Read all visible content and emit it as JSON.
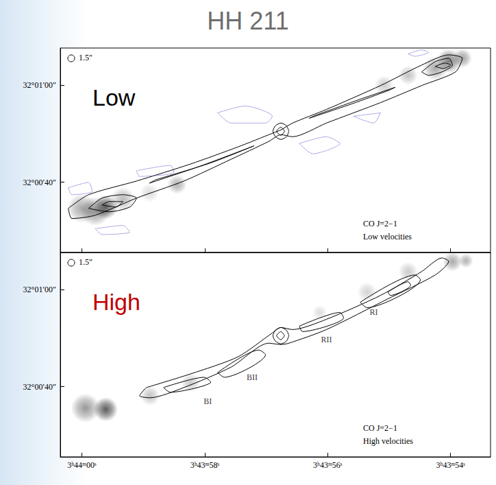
{
  "title": "HH 211",
  "chart_data": [
    {
      "type": "contour_map",
      "label": "Low",
      "label_color": "#000000",
      "beam": "1.5″",
      "annotation": [
        "CO J=2−1",
        "Low velocities"
      ],
      "xlim": [
        60.35,
        53.35
      ],
      "ylim": [
        25.5,
        67.7
      ],
      "xticks": [
        {
          "value": 60,
          "label": "3ʰ44ᵐ00ˢ"
        },
        {
          "value": 58,
          "label": "3ʰ43ᵐ58ˢ"
        },
        {
          "value": 56,
          "label": "3ʰ43ᵐ56ˢ"
        },
        {
          "value": 54,
          "label": "3ʰ43ᵐ54ˢ"
        }
      ],
      "yticks": [
        {
          "value": 40,
          "label": "32°00′40″"
        },
        {
          "value": 60,
          "label": "32°01′00″"
        }
      ],
      "tick_labels": "y",
      "emission_color": "#282828",
      "emission": [
        [
          59.61,
          34.88,
          2.5,
          0.9
        ],
        [
          59.78,
          34.0,
          3,
          0.6
        ],
        [
          60.0,
          34.6,
          3,
          0.5
        ],
        [
          59.33,
          36.5,
          2.5,
          0.4
        ],
        [
          58.45,
          39.53,
          2,
          0.45
        ],
        [
          58.9,
          37.8,
          2,
          0.2
        ],
        [
          54.03,
          65.0,
          2.5,
          0.75
        ],
        [
          53.81,
          65.6,
          2,
          0.55
        ],
        [
          54.25,
          63.5,
          2.5,
          0.5
        ],
        [
          54.69,
          62.07,
          2,
          0.35
        ],
        [
          55.08,
          60.0,
          2,
          0.3
        ]
      ],
      "series": [
        {
          "color": "#000000",
          "line_style": "solid",
          "contours": [
            [
              [
                60.22,
                34.6
              ],
              [
                59.89,
                37.42
              ],
              [
                59.11,
                40.24
              ],
              [
                58.23,
                43.76
              ],
              [
                57.46,
                47.28
              ],
              [
                56.9,
                50.09
              ],
              [
                56.76,
                50.8
              ],
              [
                56.57,
                52.21
              ],
              [
                56.02,
                55.02
              ],
              [
                55.14,
                59.95
              ],
              [
                54.47,
                64.18
              ],
              [
                54.03,
                66.29
              ],
              [
                53.81,
                65.59
              ],
              [
                53.92,
                62.77
              ],
              [
                54.47,
                59.95
              ],
              [
                55.14,
                56.43
              ],
              [
                56.02,
                52.21
              ],
              [
                56.57,
                49.39
              ],
              [
                56.76,
                49.81
              ],
              [
                56.96,
                48.4
              ],
              [
                57.57,
                44.74
              ],
              [
                58.34,
                40.24
              ],
              [
                59.11,
                36.72
              ],
              [
                59.78,
                33.19
              ],
              [
                60.16,
                32.49
              ]
            ],
            [
              [
                59.89,
                34.6
              ],
              [
                59.67,
                36.72
              ],
              [
                59.33,
                37.42
              ],
              [
                59.11,
                36.72
              ],
              [
                59.22,
                34.88
              ],
              [
                59.55,
                33.9
              ]
            ],
            [
              [
                59.67,
                35.31
              ],
              [
                59.55,
                36.01
              ],
              [
                59.33,
                36.01
              ],
              [
                59.44,
                34.88
              ]
            ],
            [
              [
                58.8,
                40.5
              ],
              [
                57.9,
                44.0
              ],
              [
                57.2,
                47.5
              ],
              [
                57.3,
                47.0
              ],
              [
                58.1,
                43.2
              ],
              [
                58.9,
                39.8
              ]
            ],
            [
              [
                56.2,
                53.8
              ],
              [
                55.5,
                57.0
              ],
              [
                54.9,
                59.6
              ],
              [
                55.0,
                59.0
              ],
              [
                55.6,
                56.2
              ],
              [
                56.3,
                53.2
              ]
            ],
            [
              [
                54.47,
                62.77
              ],
              [
                54.25,
                64.88
              ],
              [
                54.03,
                65.59
              ],
              [
                53.97,
                64.18
              ],
              [
                54.14,
                62.77
              ],
              [
                54.36,
                62.07
              ]
            ],
            [
              [
                54.25,
                63.9
              ],
              [
                54.09,
                64.6
              ],
              [
                54.0,
                64.2
              ],
              [
                54.12,
                63.47
              ]
            ],
            [
              [
                56.63,
                50.52
              ],
              [
                56.67,
                51.64
              ],
              [
                56.76,
                52.21
              ],
              [
                56.85,
                51.64
              ],
              [
                56.89,
                50.52
              ],
              [
                56.85,
                49.39
              ],
              [
                56.76,
                48.83
              ],
              [
                56.67,
                49.39
              ]
            ],
            [
              [
                56.7,
                50.52
              ],
              [
                56.76,
                51.37
              ],
              [
                56.83,
                50.52
              ],
              [
                56.76,
                49.68
              ]
            ]
          ]
        },
        {
          "color": "#5a5ad2",
          "line_style": "dotted",
          "contours": [
            [
              [
                57.79,
                54.32
              ],
              [
                57.34,
                55.73
              ],
              [
                56.9,
                53.62
              ],
              [
                57.01,
                52.21
              ],
              [
                57.57,
                52.21
              ]
            ],
            [
              [
                59.11,
                42.35
              ],
              [
                58.56,
                43.47
              ],
              [
                58.5,
                42.0
              ],
              [
                59.06,
                41.2
              ]
            ],
            [
              [
                60.22,
                38.83
              ],
              [
                59.89,
                39.95
              ],
              [
                59.83,
                38.12
              ],
              [
                60.16,
                37.42
              ]
            ],
            [
              [
                56.46,
                47.98
              ],
              [
                56.02,
                49.39
              ],
              [
                55.8,
                47.98
              ],
              [
                56.24,
                45.87
              ]
            ],
            [
              [
                55.58,
                53.62
              ],
              [
                55.14,
                54.32
              ],
              [
                55.25,
                52.21
              ]
            ],
            [
              [
                59.78,
                30.4
              ],
              [
                59.33,
                31.08
              ],
              [
                59.22,
                29.7
              ],
              [
                59.67,
                29.2
              ]
            ],
            [
              [
                54.69,
                66.5
              ],
              [
                54.47,
                67.3
              ],
              [
                54.36,
                66.8
              ],
              [
                54.58,
                66.0
              ]
            ]
          ]
        }
      ],
      "labels": []
    },
    {
      "type": "contour_map",
      "label": "High",
      "label_color": "#c00000",
      "beam": "1.5″",
      "annotation": [
        "CO J=2−1",
        "High velocities"
      ],
      "xlim": [
        60.35,
        53.35
      ],
      "ylim": [
        25.5,
        67.7
      ],
      "xticks": [
        {
          "value": 60,
          "label": "3ʰ44ᵐ00ˢ"
        },
        {
          "value": 58,
          "label": "3ʰ43ᵐ58ˢ"
        },
        {
          "value": 56,
          "label": "3ʰ43ᵐ56ˢ"
        },
        {
          "value": 54,
          "label": "3ʰ43ᵐ54ˢ"
        }
      ],
      "yticks": [
        {
          "value": 40,
          "label": "32°00′40″"
        },
        {
          "value": 60,
          "label": "32°01′00″"
        }
      ],
      "emission_color": "#282828",
      "emission": [
        [
          59.61,
          35.31,
          2.5,
          0.95
        ],
        [
          59.94,
          35.59,
          3,
          0.6
        ],
        [
          58.89,
          38.12,
          2,
          0.35
        ],
        [
          58.23,
          40.8,
          2,
          0.3
        ],
        [
          53.97,
          65.8,
          2,
          0.5
        ],
        [
          53.75,
          66.0,
          1.5,
          0.45
        ],
        [
          54.69,
          63.76,
          2,
          0.3
        ],
        [
          55.36,
          59.53,
          2,
          0.25
        ],
        [
          56.13,
          55.31,
          1.5,
          0.2
        ]
      ],
      "series": [
        {
          "color": "#000000",
          "line_style": "solid",
          "contours": [
            [
              [
                58.95,
                39.81
              ],
              [
                58.23,
                42.63
              ],
              [
                57.46,
                46.15
              ],
              [
                56.9,
                51.08
              ],
              [
                56.76,
                52.21
              ],
              [
                56.57,
                51.78
              ],
              [
                56.02,
                53.9
              ],
              [
                55.14,
                58.83
              ],
              [
                54.47,
                63.76
              ],
              [
                54.14,
                66.57
              ],
              [
                54.03,
                65.87
              ],
              [
                54.25,
                63.05
              ],
              [
                55.02,
                58.12
              ],
              [
                56.02,
                51.78
              ],
              [
                56.63,
                48.97
              ],
              [
                56.76,
                48.69
              ],
              [
                56.96,
                48.97
              ],
              [
                57.57,
                44.04
              ],
              [
                58.34,
                39.81
              ],
              [
                58.89,
                37.7
              ],
              [
                59.06,
                38.12
              ]
            ],
            [
              [
                58.67,
                39.81
              ],
              [
                58.01,
                41.93
              ],
              [
                57.9,
                40.94
              ],
              [
                58.56,
                38.83
              ]
            ],
            [
              [
                57.79,
                42.91
              ],
              [
                57.12,
                47.56
              ],
              [
                57.01,
                46.57
              ],
              [
                57.68,
                41.93
              ]
            ],
            [
              [
                56.46,
                52.49
              ],
              [
                55.8,
                55.31
              ],
              [
                55.74,
                54.18
              ],
              [
                56.41,
                51.36
              ]
            ],
            [
              [
                55.47,
                57.42
              ],
              [
                54.58,
                63.05
              ],
              [
                54.49,
                62.07
              ],
              [
                55.36,
                56.29
              ]
            ],
            [
              [
                55.02,
                59.53
              ],
              [
                54.69,
                61.64
              ],
              [
                54.65,
                60.94
              ],
              [
                54.98,
                58.83
              ]
            ],
            [
              [
                56.63,
                50.52
              ],
              [
                56.67,
                51.64
              ],
              [
                56.76,
                52.21
              ],
              [
                56.85,
                51.64
              ],
              [
                56.89,
                50.52
              ],
              [
                56.85,
                49.39
              ],
              [
                56.76,
                48.83
              ],
              [
                56.67,
                49.39
              ]
            ],
            [
              [
                56.7,
                50.52
              ],
              [
                56.76,
                51.37
              ],
              [
                56.83,
                50.52
              ],
              [
                56.76,
                49.68
              ]
            ]
          ]
        }
      ],
      "labels": [
        {
          "text": "BI",
          "x": 57.95,
          "y": 37.0
        },
        {
          "text": "BII",
          "x": 57.23,
          "y": 41.93
        },
        {
          "text": "RII",
          "x": 56.02,
          "y": 49.67
        },
        {
          "text": "RI",
          "x": 55.25,
          "y": 55.31
        }
      ]
    }
  ]
}
